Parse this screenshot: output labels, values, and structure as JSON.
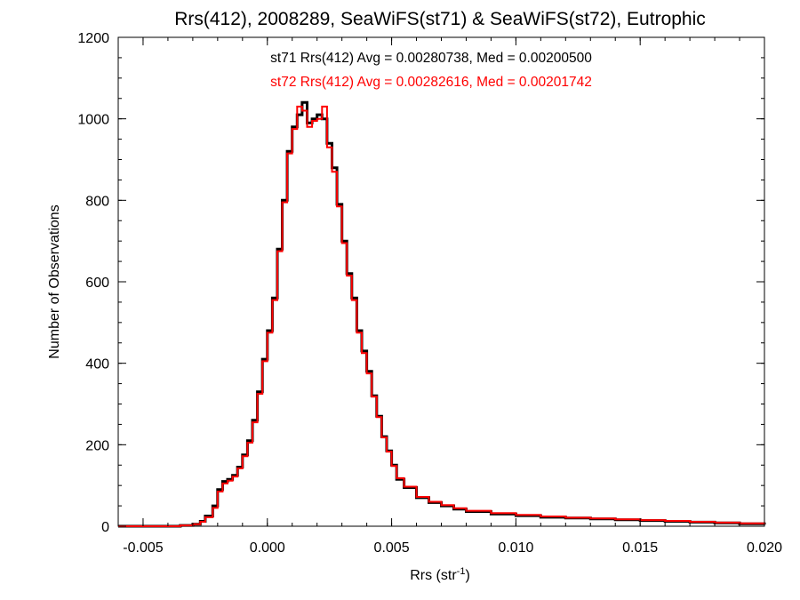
{
  "chart_data": {
    "type": "line",
    "title": "Rrs(412), 2008289, SeaWiFS(st71) & SeaWiFS(st72), Eutrophic",
    "xlabel": "Rrs (str",
    "xlabel_sup": "-1",
    "xlabel_close": ")",
    "ylabel": "Number of Observations",
    "xlim": [
      -0.006,
      0.02
    ],
    "ylim": [
      0,
      1200
    ],
    "xticks": [
      -0.005,
      0.0,
      0.005,
      0.01,
      0.015,
      0.02
    ],
    "xtick_labels": [
      "-0.005",
      "0.000",
      "0.005",
      "0.010",
      "0.015",
      "0.020"
    ],
    "yticks": [
      0,
      200,
      400,
      600,
      800,
      1000,
      1200
    ],
    "ytick_labels": [
      "0",
      "200",
      "400",
      "600",
      "800",
      "1000",
      "1200"
    ],
    "grid": false,
    "series": [
      {
        "name": "st71",
        "color": "#000000",
        "annotation": "st71 Rrs(412) Avg = 0.00280738, Med = 0.00200500",
        "points": [
          [
            -0.006,
            0
          ],
          [
            -0.0035,
            2
          ],
          [
            -0.003,
            5
          ],
          [
            -0.0027,
            12
          ],
          [
            -0.0025,
            25
          ],
          [
            -0.0022,
            50
          ],
          [
            -0.002,
            90
          ],
          [
            -0.0018,
            110
          ],
          [
            -0.0016,
            115
          ],
          [
            -0.0014,
            125
          ],
          [
            -0.0012,
            145
          ],
          [
            -0.001,
            175
          ],
          [
            -0.0008,
            210
          ],
          [
            -0.0006,
            260
          ],
          [
            -0.0004,
            330
          ],
          [
            -0.0002,
            410
          ],
          [
            0.0,
            480
          ],
          [
            0.0002,
            560
          ],
          [
            0.0004,
            680
          ],
          [
            0.0006,
            800
          ],
          [
            0.0008,
            920
          ],
          [
            0.001,
            980
          ],
          [
            0.0012,
            1010
          ],
          [
            0.0014,
            1040
          ],
          [
            0.0016,
            990
          ],
          [
            0.0018,
            1000
          ],
          [
            0.002,
            1010
          ],
          [
            0.0022,
            1000
          ],
          [
            0.0024,
            940
          ],
          [
            0.0026,
            880
          ],
          [
            0.0028,
            790
          ],
          [
            0.003,
            700
          ],
          [
            0.0032,
            620
          ],
          [
            0.0034,
            560
          ],
          [
            0.0036,
            480
          ],
          [
            0.0038,
            430
          ],
          [
            0.004,
            380
          ],
          [
            0.0042,
            320
          ],
          [
            0.0044,
            270
          ],
          [
            0.0046,
            220
          ],
          [
            0.0048,
            185
          ],
          [
            0.005,
            150
          ],
          [
            0.0052,
            115
          ],
          [
            0.0055,
            95
          ],
          [
            0.006,
            70
          ],
          [
            0.0065,
            58
          ],
          [
            0.007,
            50
          ],
          [
            0.0075,
            42
          ],
          [
            0.008,
            36
          ],
          [
            0.009,
            30
          ],
          [
            0.01,
            26
          ],
          [
            0.011,
            22
          ],
          [
            0.012,
            20
          ],
          [
            0.013,
            18
          ],
          [
            0.014,
            16
          ],
          [
            0.015,
            14
          ],
          [
            0.016,
            12
          ],
          [
            0.017,
            10
          ],
          [
            0.018,
            8
          ],
          [
            0.019,
            6
          ],
          [
            0.02,
            4
          ]
        ]
      },
      {
        "name": "st72",
        "color": "#ff0000",
        "annotation": "st72 Rrs(412) Avg = 0.00282616, Med = 0.00201742",
        "points": [
          [
            -0.006,
            0
          ],
          [
            -0.0035,
            2
          ],
          [
            -0.003,
            5
          ],
          [
            -0.0027,
            11
          ],
          [
            -0.0025,
            22
          ],
          [
            -0.0022,
            45
          ],
          [
            -0.002,
            85
          ],
          [
            -0.0018,
            105
          ],
          [
            -0.0016,
            112
          ],
          [
            -0.0014,
            122
          ],
          [
            -0.0012,
            142
          ],
          [
            -0.001,
            172
          ],
          [
            -0.0008,
            205
          ],
          [
            -0.0006,
            255
          ],
          [
            -0.0004,
            325
          ],
          [
            -0.0002,
            405
          ],
          [
            0.0,
            475
          ],
          [
            0.0002,
            555
          ],
          [
            0.0004,
            675
          ],
          [
            0.0006,
            795
          ],
          [
            0.0008,
            915
          ],
          [
            0.001,
            975
          ],
          [
            0.0012,
            1030
          ],
          [
            0.0014,
            1020
          ],
          [
            0.0016,
            980
          ],
          [
            0.0018,
            995
          ],
          [
            0.002,
            1000
          ],
          [
            0.0022,
            1030
          ],
          [
            0.0024,
            930
          ],
          [
            0.0026,
            870
          ],
          [
            0.0028,
            785
          ],
          [
            0.003,
            695
          ],
          [
            0.0032,
            615
          ],
          [
            0.0034,
            555
          ],
          [
            0.0036,
            475
          ],
          [
            0.0038,
            425
          ],
          [
            0.004,
            375
          ],
          [
            0.0042,
            318
          ],
          [
            0.0044,
            268
          ],
          [
            0.0046,
            218
          ],
          [
            0.0048,
            183
          ],
          [
            0.005,
            148
          ],
          [
            0.0052,
            118
          ],
          [
            0.0055,
            97
          ],
          [
            0.006,
            72
          ],
          [
            0.0065,
            60
          ],
          [
            0.007,
            52
          ],
          [
            0.0075,
            44
          ],
          [
            0.008,
            38
          ],
          [
            0.009,
            32
          ],
          [
            0.01,
            28
          ],
          [
            0.011,
            24
          ],
          [
            0.012,
            21
          ],
          [
            0.013,
            19
          ],
          [
            0.014,
            17
          ],
          [
            0.015,
            15
          ],
          [
            0.016,
            13
          ],
          [
            0.017,
            11
          ],
          [
            0.018,
            9
          ],
          [
            0.019,
            7
          ],
          [
            0.02,
            5
          ]
        ]
      }
    ]
  }
}
